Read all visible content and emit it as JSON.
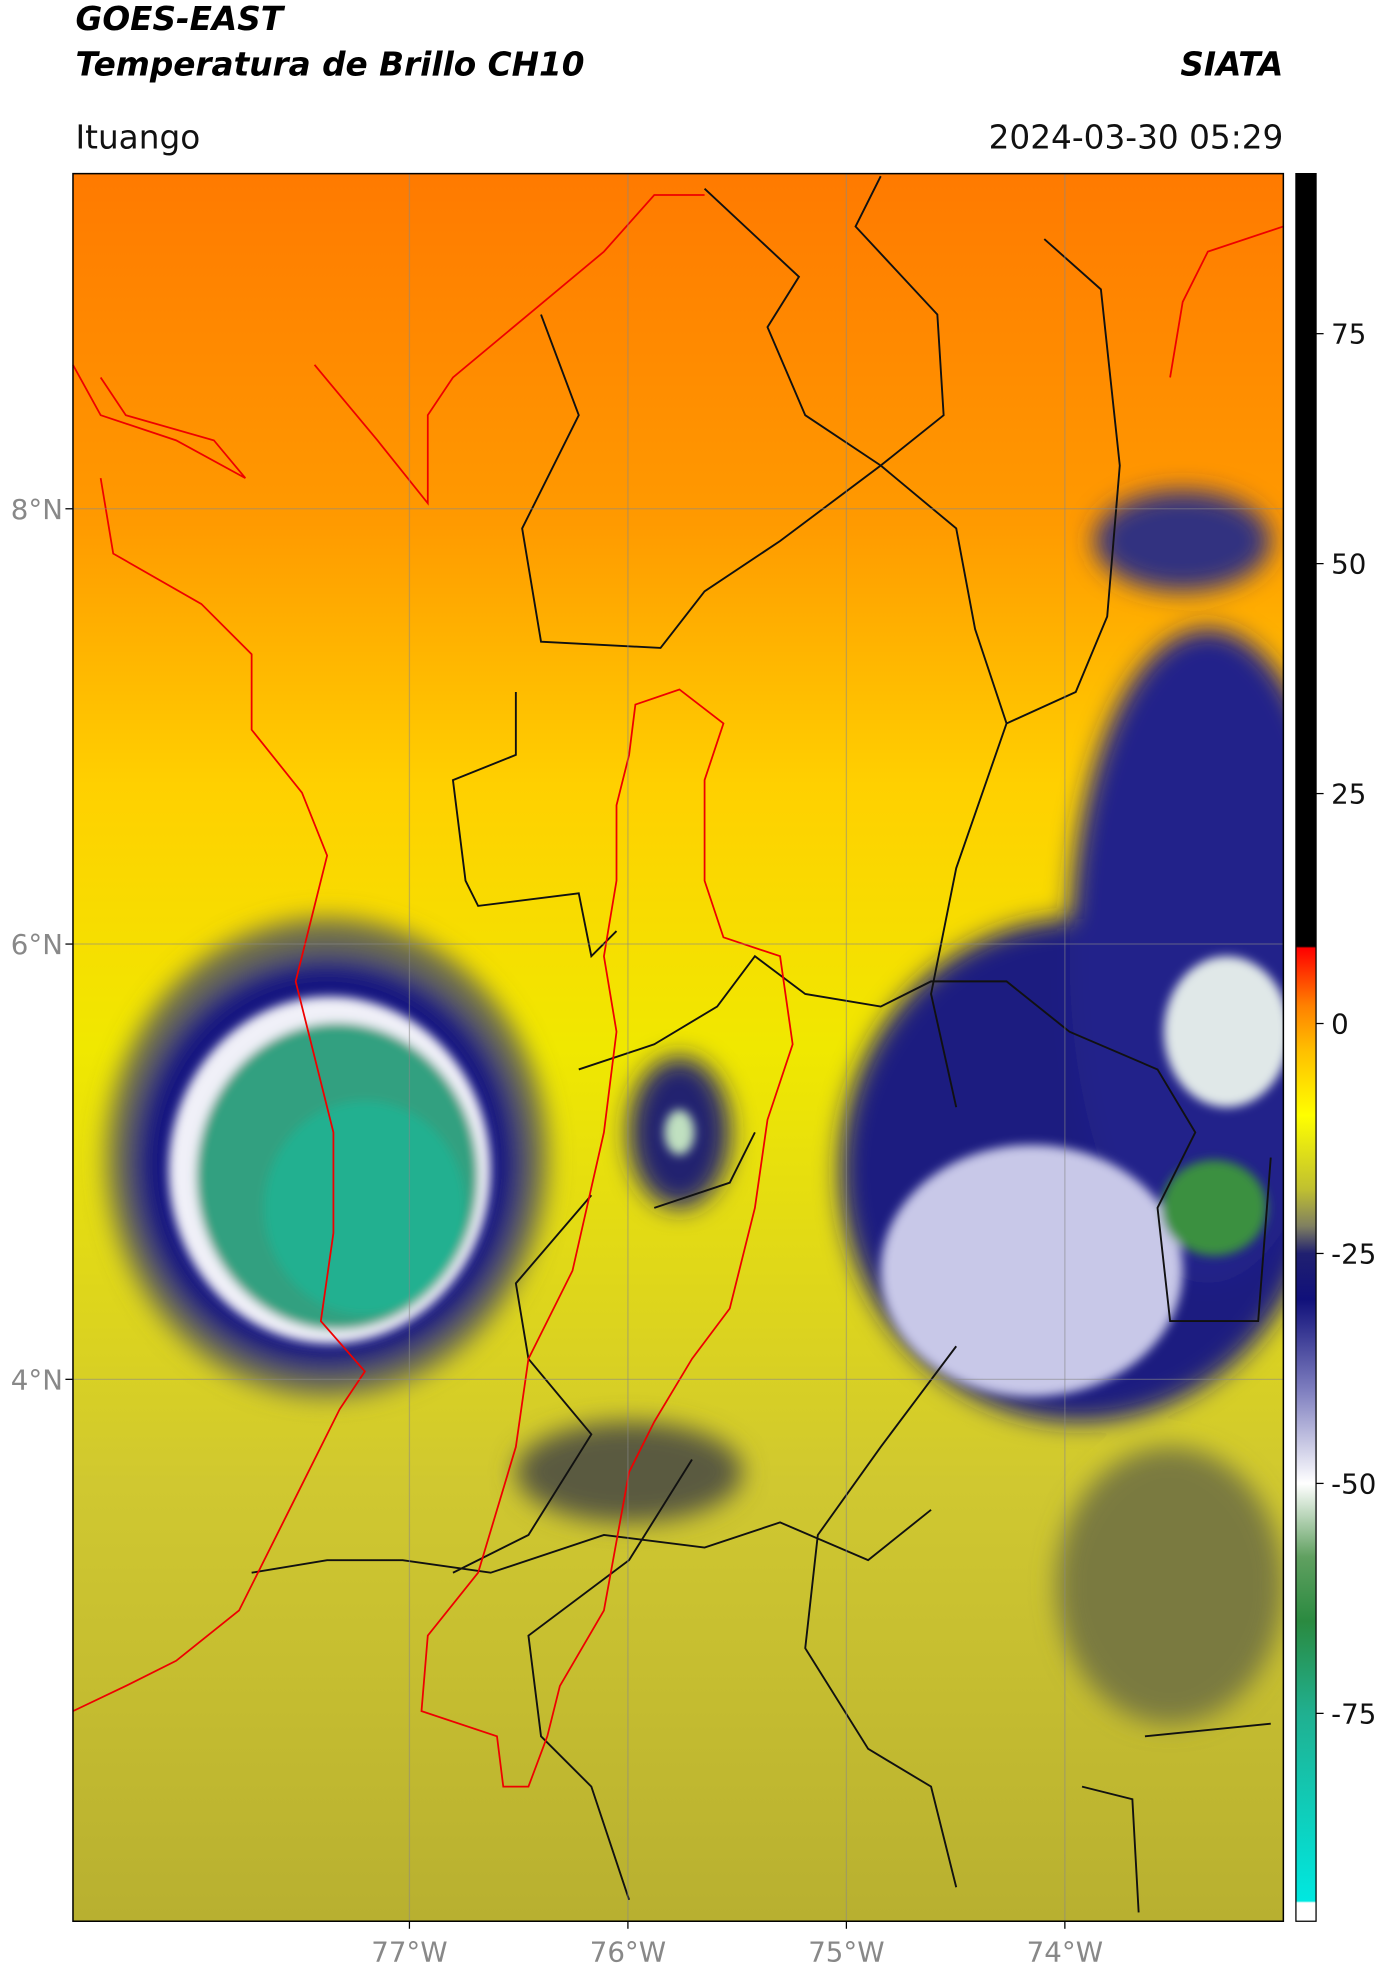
{
  "header": {
    "title": "GOES-EAST",
    "subtitle": "Temperatura de Brillo CH10",
    "source": "SIATA",
    "location": "Ituango",
    "datetime": "2024-03-30 05:29"
  },
  "map": {
    "lonlim": [
      -78.54,
      -73.0
    ],
    "latlim": [
      1.51,
      9.54
    ],
    "grid": true,
    "xticks": [
      {
        "value": -77,
        "label": "77°W"
      },
      {
        "value": -76,
        "label": "76°W"
      },
      {
        "value": -75,
        "label": "75°W"
      },
      {
        "value": -74,
        "label": "74°W"
      }
    ],
    "yticks": [
      {
        "value": 8,
        "label": "8°N"
      },
      {
        "value": 6,
        "label": "6°N"
      },
      {
        "value": 4,
        "label": "4°N"
      }
    ]
  },
  "colorbar": {
    "lim": [
      -97.6,
      92.4
    ],
    "ticks": [
      75,
      50,
      25,
      0,
      -25,
      -50,
      -75
    ],
    "colormap": [
      [
        -97.6,
        "#ffffff"
      ],
      [
        -95.6,
        "#ffffff"
      ],
      [
        -95.4,
        "#00e8e0"
      ],
      [
        -75,
        "#20b090"
      ],
      [
        -65,
        "#2a8a40"
      ],
      [
        -58,
        "#60a060"
      ],
      [
        -50,
        "#ffffff"
      ],
      [
        -40,
        "#8080c0"
      ],
      [
        -30,
        "#10107a"
      ],
      [
        -25,
        "#202070"
      ],
      [
        -22,
        "#808060"
      ],
      [
        -18,
        "#c0c030"
      ],
      [
        -10,
        "#ffff00"
      ],
      [
        -3,
        "#ffc000"
      ],
      [
        2,
        "#ff8000"
      ],
      [
        8.2,
        "#ff0000"
      ],
      [
        8.4,
        "#000000"
      ],
      [
        92.4,
        "#000000"
      ]
    ]
  }
}
